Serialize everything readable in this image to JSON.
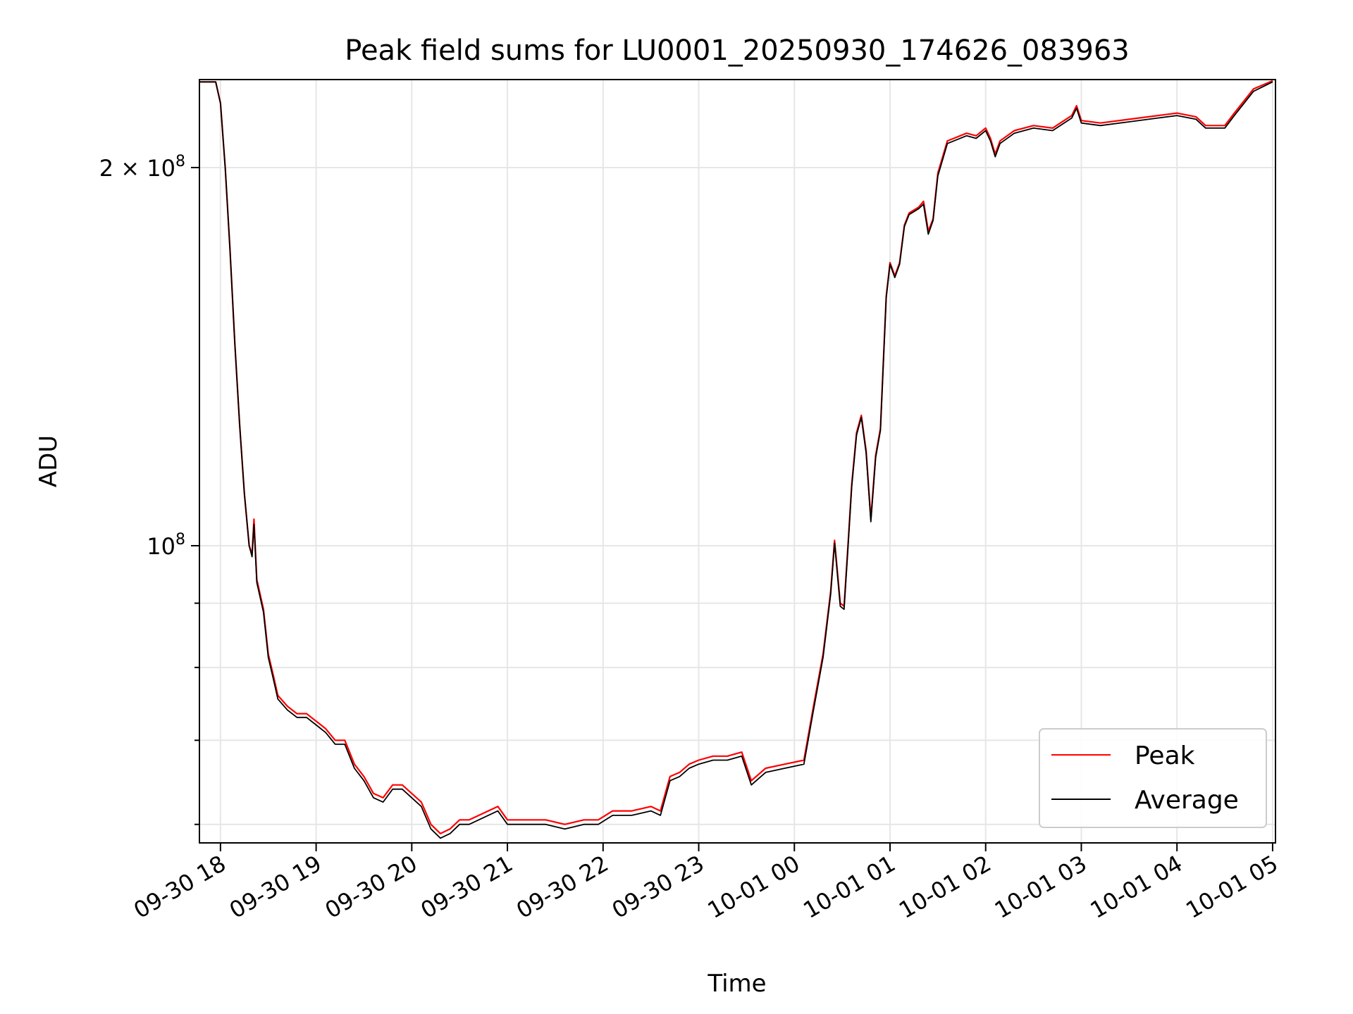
{
  "chart_data": {
    "type": "line",
    "title": "Peak field sums for LU0001_20250930_174626_083963",
    "xlabel": "Time",
    "ylabel": "ADU",
    "yscale": "log",
    "grid": true,
    "legend_position": "lower-right",
    "x_ticks": [
      "09-30 18",
      "09-30 19",
      "09-30 20",
      "09-30 21",
      "09-30 22",
      "09-30 23",
      "10-01 00",
      "10-01 01",
      "10-01 02",
      "10-01 03",
      "10-01 04",
      "10-01 05"
    ],
    "x_tick_hours": [
      18,
      19,
      20,
      21,
      22,
      23,
      24,
      25,
      26,
      27,
      28,
      29
    ],
    "y_ticks": [
      {
        "value": 100000000,
        "label": "10",
        "sup": "8"
      },
      {
        "value": 200000000,
        "label": "2 × 10",
        "sup": "8"
      }
    ],
    "y_minor_ticks": [
      60000000,
      70000000,
      80000000,
      90000000
    ],
    "xlim_hours": [
      17.78,
      29.03
    ],
    "ylim": [
      58000000,
      235000000
    ],
    "series": [
      {
        "name": "Peak",
        "color": "#ff0000",
        "points": [
          [
            17.78,
            234000000
          ],
          [
            17.95,
            234000000
          ],
          [
            18.0,
            225000000
          ],
          [
            18.05,
            200000000
          ],
          [
            18.1,
            172000000
          ],
          [
            18.15,
            145000000
          ],
          [
            18.2,
            125000000
          ],
          [
            18.25,
            110000000
          ],
          [
            18.3,
            100000000
          ],
          [
            18.33,
            98500000
          ],
          [
            18.35,
            105000000
          ],
          [
            18.38,
            94000000
          ],
          [
            18.45,
            89000000
          ],
          [
            18.5,
            82000000
          ],
          [
            18.55,
            79000000
          ],
          [
            18.6,
            76000000
          ],
          [
            18.7,
            74500000
          ],
          [
            18.8,
            73500000
          ],
          [
            18.9,
            73500000
          ],
          [
            19.0,
            72500000
          ],
          [
            19.1,
            71500000
          ],
          [
            19.2,
            70000000
          ],
          [
            19.3,
            70000000
          ],
          [
            19.4,
            67000000
          ],
          [
            19.5,
            65500000
          ],
          [
            19.6,
            63500000
          ],
          [
            19.7,
            63000000
          ],
          [
            19.8,
            64500000
          ],
          [
            19.9,
            64500000
          ],
          [
            20.0,
            63500000
          ],
          [
            20.1,
            62500000
          ],
          [
            20.2,
            60000000
          ],
          [
            20.3,
            59000000
          ],
          [
            20.4,
            59500000
          ],
          [
            20.5,
            60500000
          ],
          [
            20.6,
            60500000
          ],
          [
            20.8,
            61500000
          ],
          [
            20.9,
            62000000
          ],
          [
            21.0,
            60500000
          ],
          [
            21.2,
            60500000
          ],
          [
            21.4,
            60500000
          ],
          [
            21.6,
            60000000
          ],
          [
            21.8,
            60500000
          ],
          [
            21.95,
            60500000
          ],
          [
            22.1,
            61500000
          ],
          [
            22.3,
            61500000
          ],
          [
            22.5,
            62000000
          ],
          [
            22.6,
            61500000
          ],
          [
            22.7,
            65500000
          ],
          [
            22.8,
            66000000
          ],
          [
            22.9,
            67000000
          ],
          [
            23.0,
            67500000
          ],
          [
            23.15,
            68000000
          ],
          [
            23.3,
            68000000
          ],
          [
            23.45,
            68500000
          ],
          [
            23.55,
            65000000
          ],
          [
            23.7,
            66500000
          ],
          [
            23.9,
            67000000
          ],
          [
            24.1,
            67500000
          ],
          [
            24.2,
            74500000
          ],
          [
            24.3,
            82000000
          ],
          [
            24.38,
            92000000
          ],
          [
            24.42,
            101000000
          ],
          [
            24.48,
            90000000
          ],
          [
            24.52,
            89500000
          ],
          [
            24.56,
            100000000
          ],
          [
            24.6,
            112000000
          ],
          [
            24.65,
            123000000
          ],
          [
            24.7,
            127000000
          ],
          [
            24.75,
            119000000
          ],
          [
            24.8,
            105000000
          ],
          [
            24.85,
            118000000
          ],
          [
            24.9,
            124000000
          ],
          [
            24.93,
            140000000
          ],
          [
            24.96,
            158000000
          ],
          [
            25.0,
            168000000
          ],
          [
            25.05,
            164000000
          ],
          [
            25.1,
            168000000
          ],
          [
            25.15,
            180000000
          ],
          [
            25.2,
            184000000
          ],
          [
            25.3,
            186000000
          ],
          [
            25.35,
            188000000
          ],
          [
            25.4,
            178000000
          ],
          [
            25.45,
            182000000
          ],
          [
            25.5,
            198000000
          ],
          [
            25.6,
            210000000
          ],
          [
            25.8,
            213000000
          ],
          [
            25.9,
            212000000
          ],
          [
            26.0,
            215000000
          ],
          [
            26.05,
            211000000
          ],
          [
            26.1,
            205000000
          ],
          [
            26.15,
            210000000
          ],
          [
            26.3,
            214000000
          ],
          [
            26.5,
            216000000
          ],
          [
            26.7,
            215000000
          ],
          [
            26.9,
            220000000
          ],
          [
            26.95,
            224000000
          ],
          [
            27.0,
            218000000
          ],
          [
            27.2,
            217000000
          ],
          [
            27.5,
            218500000
          ],
          [
            27.8,
            220000000
          ],
          [
            28.0,
            221000000
          ],
          [
            28.2,
            219500000
          ],
          [
            28.3,
            216000000
          ],
          [
            28.5,
            216000000
          ],
          [
            28.6,
            221000000
          ],
          [
            28.8,
            231000000
          ],
          [
            29.0,
            234500000
          ]
        ]
      },
      {
        "name": "Average",
        "color": "#000000",
        "points": [
          [
            17.78,
            234000000
          ],
          [
            17.95,
            234000000
          ],
          [
            18.0,
            225000000
          ],
          [
            18.05,
            200000000
          ],
          [
            18.1,
            172000000
          ],
          [
            18.15,
            145000000
          ],
          [
            18.2,
            125000000
          ],
          [
            18.25,
            110000000
          ],
          [
            18.3,
            100000000
          ],
          [
            18.33,
            98000000
          ],
          [
            18.35,
            104000000
          ],
          [
            18.38,
            93500000
          ],
          [
            18.45,
            88500000
          ],
          [
            18.5,
            81500000
          ],
          [
            18.55,
            78500000
          ],
          [
            18.6,
            75500000
          ],
          [
            18.7,
            74000000
          ],
          [
            18.8,
            73000000
          ],
          [
            18.9,
            73000000
          ],
          [
            19.0,
            72000000
          ],
          [
            19.1,
            71000000
          ],
          [
            19.2,
            69500000
          ],
          [
            19.3,
            69500000
          ],
          [
            19.4,
            66500000
          ],
          [
            19.5,
            65000000
          ],
          [
            19.6,
            63000000
          ],
          [
            19.7,
            62500000
          ],
          [
            19.8,
            64000000
          ],
          [
            19.9,
            64000000
          ],
          [
            20.0,
            63000000
          ],
          [
            20.1,
            62000000
          ],
          [
            20.2,
            59500000
          ],
          [
            20.3,
            58500000
          ],
          [
            20.4,
            59000000
          ],
          [
            20.5,
            60000000
          ],
          [
            20.6,
            60000000
          ],
          [
            20.8,
            61000000
          ],
          [
            20.9,
            61500000
          ],
          [
            21.0,
            60000000
          ],
          [
            21.2,
            60000000
          ],
          [
            21.4,
            60000000
          ],
          [
            21.6,
            59500000
          ],
          [
            21.8,
            60000000
          ],
          [
            21.95,
            60000000
          ],
          [
            22.1,
            61000000
          ],
          [
            22.3,
            61000000
          ],
          [
            22.5,
            61500000
          ],
          [
            22.6,
            61000000
          ],
          [
            22.7,
            65000000
          ],
          [
            22.8,
            65500000
          ],
          [
            22.9,
            66500000
          ],
          [
            23.0,
            67000000
          ],
          [
            23.15,
            67500000
          ],
          [
            23.3,
            67500000
          ],
          [
            23.45,
            68000000
          ],
          [
            23.55,
            64500000
          ],
          [
            23.7,
            66000000
          ],
          [
            23.9,
            66500000
          ],
          [
            24.1,
            67000000
          ],
          [
            24.2,
            74000000
          ],
          [
            24.3,
            81500000
          ],
          [
            24.38,
            91500000
          ],
          [
            24.42,
            100500000
          ],
          [
            24.48,
            89500000
          ],
          [
            24.52,
            89000000
          ],
          [
            24.56,
            99500000
          ],
          [
            24.6,
            111500000
          ],
          [
            24.65,
            122500000
          ],
          [
            24.7,
            126500000
          ],
          [
            24.75,
            118500000
          ],
          [
            24.8,
            104500000
          ],
          [
            24.85,
            117500000
          ],
          [
            24.9,
            123500000
          ],
          [
            24.93,
            139500000
          ],
          [
            24.96,
            157500000
          ],
          [
            25.0,
            167500000
          ],
          [
            25.05,
            163500000
          ],
          [
            25.1,
            167500000
          ],
          [
            25.15,
            179500000
          ],
          [
            25.2,
            183500000
          ],
          [
            25.3,
            185500000
          ],
          [
            25.35,
            187000000
          ],
          [
            25.4,
            177000000
          ],
          [
            25.45,
            181500000
          ],
          [
            25.5,
            197000000
          ],
          [
            25.6,
            209000000
          ],
          [
            25.8,
            212000000
          ],
          [
            25.9,
            211000000
          ],
          [
            26.0,
            214000000
          ],
          [
            26.05,
            210000000
          ],
          [
            26.1,
            204000000
          ],
          [
            26.15,
            209000000
          ],
          [
            26.3,
            213000000
          ],
          [
            26.5,
            215000000
          ],
          [
            26.7,
            214000000
          ],
          [
            26.9,
            219000000
          ],
          [
            26.95,
            223000000
          ],
          [
            27.0,
            217000000
          ],
          [
            27.2,
            216000000
          ],
          [
            27.5,
            217500000
          ],
          [
            27.8,
            219000000
          ],
          [
            28.0,
            220000000
          ],
          [
            28.2,
            218500000
          ],
          [
            28.3,
            215000000
          ],
          [
            28.5,
            215000000
          ],
          [
            28.6,
            220000000
          ],
          [
            28.8,
            230000000
          ],
          [
            29.0,
            234000000
          ]
        ]
      }
    ]
  }
}
